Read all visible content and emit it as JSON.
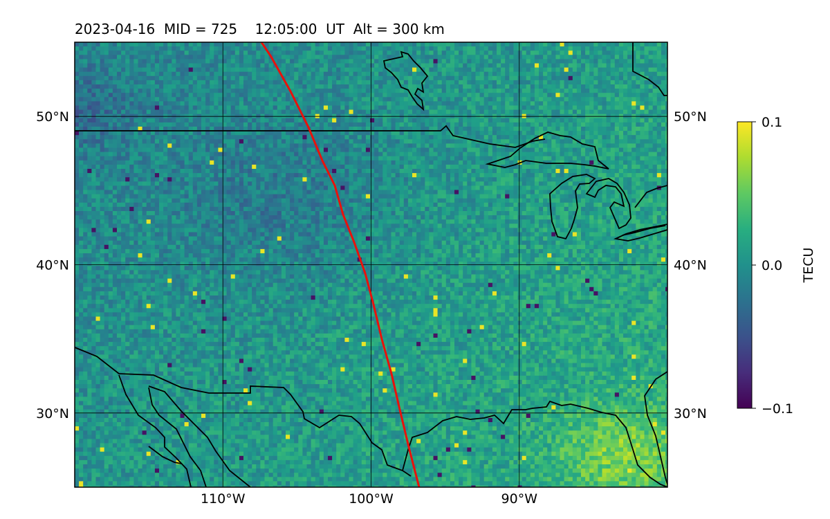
{
  "title": {
    "date": "2023-04-16",
    "mid": "MID = 725",
    "time": "12:05:00  UT",
    "alt": "Alt = 300 km"
  },
  "map": {
    "lon_range": [
      -120,
      -80
    ],
    "lat_range": [
      25,
      55
    ],
    "lat_ticks": [
      {
        "value": 30,
        "label": "30°N"
      },
      {
        "value": 40,
        "label": "40°N"
      },
      {
        "value": 50,
        "label": "50°N"
      }
    ],
    "lon_ticks": [
      {
        "value": -110,
        "label": "110°W"
      },
      {
        "value": -100,
        "label": "100°W"
      },
      {
        "value": -90,
        "label": "90°W"
      }
    ],
    "grid": true,
    "field": "Detrended TEC perturbation map (viridis), approx. 0.4° grid cells",
    "track_color": "#e8120c",
    "coast_color": "#000000"
  },
  "colorbar": {
    "label": "TECU",
    "ticks": [
      {
        "value": 0.1,
        "label": "0.1"
      },
      {
        "value": 0.0,
        "label": "0.0"
      },
      {
        "value": -0.1,
        "label": "−0.1"
      }
    ],
    "range": [
      -0.1,
      0.1
    ],
    "colormap": "viridis"
  }
}
